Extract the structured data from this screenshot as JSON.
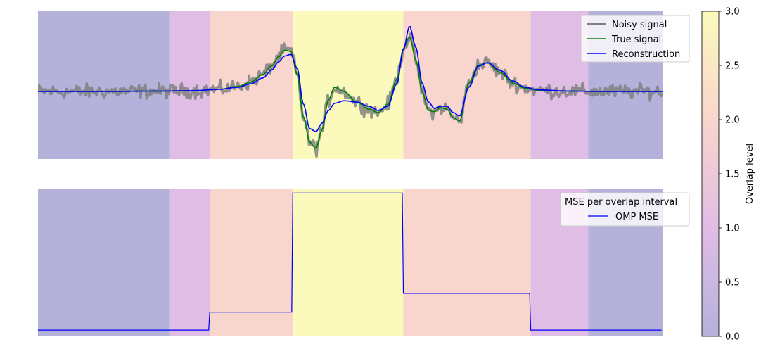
{
  "chart_data": [
    {
      "type": "line",
      "panel": "top",
      "x_domain": [
        0,
        1000
      ],
      "y_domain": [
        -1.6,
        1.9
      ],
      "axes_visible": false,
      "background_regions": [
        {
          "x0": 0,
          "x1": 210,
          "overlap": 0
        },
        {
          "x0": 210,
          "x1": 275,
          "overlap": 1
        },
        {
          "x0": 275,
          "x1": 408,
          "overlap": 2
        },
        {
          "x0": 408,
          "x1": 585,
          "overlap": 3
        },
        {
          "x0": 585,
          "x1": 789,
          "overlap": 2
        },
        {
          "x0": 789,
          "x1": 881,
          "overlap": 1
        },
        {
          "x0": 881,
          "x1": 1000,
          "overlap": 0
        }
      ],
      "legend_position": "upper right",
      "series": [
        {
          "name": "Noisy signal",
          "color": "#808080",
          "noise_amplitude": 0.12
        },
        {
          "name": "True signal",
          "color": "#008000",
          "x": [
            0,
            100,
            200,
            250,
            290,
            320,
            340,
            360,
            375,
            385,
            395,
            405,
            415,
            425,
            435,
            445,
            455,
            465,
            475,
            490,
            510,
            530,
            545,
            560,
            575,
            585,
            595,
            605,
            615,
            625,
            635,
            645,
            655,
            665,
            675,
            690,
            705,
            720,
            740,
            760,
            780,
            800,
            850,
            900,
            950,
            1000
          ],
          "y": [
            0.0,
            0.0,
            0.01,
            0.02,
            0.05,
            0.12,
            0.22,
            0.4,
            0.62,
            0.82,
            0.98,
            0.95,
            0.4,
            -0.6,
            -1.2,
            -1.35,
            -0.9,
            -0.2,
            0.1,
            0.0,
            -0.25,
            -0.42,
            -0.5,
            -0.3,
            0.3,
            1.02,
            1.3,
            0.75,
            0.0,
            -0.45,
            -0.48,
            -0.38,
            -0.42,
            -0.62,
            -0.7,
            0.2,
            0.62,
            0.68,
            0.45,
            0.2,
            0.08,
            0.03,
            0.01,
            0.0,
            0.0,
            0.0
          ]
        },
        {
          "name": "Reconstruction",
          "color": "#0000ff",
          "x": [
            0,
            100,
            200,
            250,
            290,
            320,
            340,
            360,
            375,
            385,
            395,
            405,
            415,
            425,
            435,
            445,
            455,
            465,
            475,
            490,
            510,
            530,
            545,
            560,
            575,
            585,
            595,
            605,
            615,
            625,
            635,
            645,
            655,
            665,
            675,
            690,
            705,
            720,
            740,
            760,
            780,
            800,
            850,
            900,
            950,
            1000
          ],
          "y": [
            0.0,
            0.0,
            0.01,
            0.02,
            0.05,
            0.1,
            0.18,
            0.32,
            0.52,
            0.7,
            0.84,
            0.88,
            0.55,
            -0.3,
            -0.88,
            -0.95,
            -0.75,
            -0.45,
            -0.28,
            -0.22,
            -0.25,
            -0.35,
            -0.45,
            -0.35,
            0.2,
            1.0,
            1.55,
            1.05,
            0.2,
            -0.25,
            -0.4,
            -0.35,
            -0.35,
            -0.5,
            -0.58,
            0.1,
            0.6,
            0.68,
            0.5,
            0.25,
            0.1,
            0.04,
            0.01,
            0.0,
            0.0,
            0.0
          ]
        }
      ]
    },
    {
      "type": "line",
      "panel": "bottom",
      "x_domain": [
        0,
        1000
      ],
      "y_domain": [
        -0.05,
        1.6
      ],
      "axes_visible": false,
      "legend_title": "MSE per overlap interval",
      "legend_position": "upper right",
      "series": [
        {
          "name": "OMP MSE",
          "color": "#0000ff",
          "segments": [
            {
              "x0": 0,
              "x1": 275,
              "value": 0.02
            },
            {
              "x0": 275,
              "x1": 408,
              "value": 0.22
            },
            {
              "x0": 408,
              "x1": 585,
              "value": 1.55
            },
            {
              "x0": 585,
              "x1": 789,
              "value": 0.43
            },
            {
              "x0": 789,
              "x1": 1000,
              "value": 0.02
            }
          ]
        }
      ]
    }
  ],
  "colorbar": {
    "label": "Overlap level",
    "min": 0,
    "max": 3,
    "ticks": [
      "0.0",
      "0.5",
      "1.0",
      "1.5",
      "2.0",
      "2.5",
      "3.0"
    ],
    "stops": [
      "#6a64b8",
      "#c27bcb",
      "#f2ab9b",
      "#f8f57a"
    ],
    "alpha": 0.5
  },
  "legend": {
    "noisy": "Noisy signal",
    "true": "True signal",
    "recon": "Reconstruction",
    "mse_title": "MSE per overlap interval",
    "mse": "OMP MSE"
  }
}
